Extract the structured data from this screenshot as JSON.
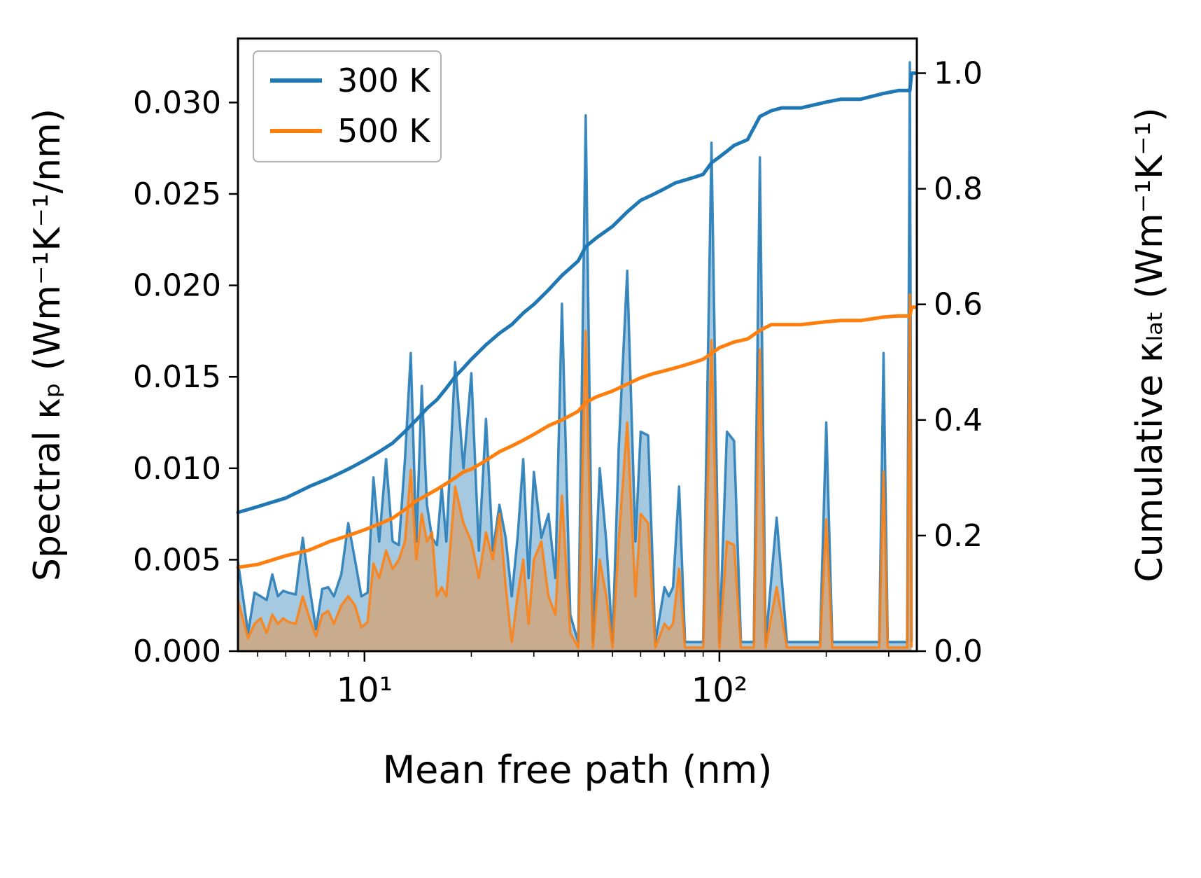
{
  "chart_data": {
    "type": "line",
    "title": "",
    "xlabel": "Mean free path (nm)",
    "x_axis": {
      "scale": "log",
      "min": 4.4,
      "max": 360,
      "major_tick_values": [
        10,
        100
      ],
      "major_tick_labels": [
        "10¹",
        "10²"
      ],
      "minor_tick_values": [
        5,
        6,
        7,
        8,
        9,
        20,
        30,
        40,
        50,
        60,
        70,
        80,
        90,
        200,
        300
      ]
    },
    "left_axis": {
      "label": "Spectral κₚ (Wm⁻¹K⁻¹/nm)",
      "min": 0,
      "max": 0.0335,
      "tick_values": [
        0.0,
        0.005,
        0.01,
        0.015,
        0.02,
        0.025,
        0.03
      ],
      "tick_labels": [
        "0.000",
        "0.005",
        "0.010",
        "0.015",
        "0.020",
        "0.025",
        "0.030"
      ]
    },
    "right_axis": {
      "label": "Cumulative κₗₐₜ (Wm⁻¹K⁻¹)",
      "min": 0,
      "max": 1.06,
      "tick_values": [
        0.0,
        0.2,
        0.4,
        0.6,
        0.8,
        1.0
      ],
      "tick_labels": [
        "0.0",
        "0.2",
        "0.4",
        "0.6",
        "0.8",
        "1.0"
      ]
    },
    "legend": {
      "position": "upper-left",
      "items": [
        {
          "label": "300 K",
          "color": "#1f77b4"
        },
        {
          "label": "500 K",
          "color": "#ff7f0e"
        }
      ]
    },
    "series": [
      {
        "name": "300 K spectral",
        "legend_label": "300 K",
        "color": "#1f77b4",
        "axis": "left",
        "style": "area",
        "x": [
          4.4,
          4.7,
          4.9,
          5.1,
          5.3,
          5.5,
          5.7,
          5.9,
          6.1,
          6.4,
          6.7,
          7.0,
          7.3,
          7.6,
          7.9,
          8.2,
          8.6,
          9.0,
          9.4,
          9.8,
          10.2,
          10.6,
          11.0,
          11.5,
          12.0,
          12.5,
          13.0,
          13.5,
          14.0,
          14.5,
          15.0,
          15.5,
          16.0,
          16.5,
          17.0,
          18.0,
          19.0,
          20.0,
          21.0,
          22.0,
          23.0,
          24.0,
          25.0,
          26.0,
          27.0,
          28.0,
          29.0,
          30.0,
          31.5,
          33.0,
          34.5,
          36.0,
          38.0,
          40.0,
          42.0,
          44.0,
          46.0,
          48.0,
          50.0,
          52.0,
          55.0,
          58.0,
          60.0,
          63.0,
          66.0,
          70.0,
          72.0,
          74.0,
          77.0,
          80.0,
          85.0,
          90.0,
          95.0,
          100.0,
          105.0,
          110.0,
          115.0,
          125.0,
          130.0,
          135.0,
          145.0,
          155.0,
          192.0,
          200.0,
          208.0,
          282.0,
          290.0,
          298.0,
          338.0,
          344.0,
          348.0
        ],
        "y": [
          0.0049,
          0.001,
          0.0032,
          0.003,
          0.0028,
          0.0042,
          0.003,
          0.0033,
          0.0032,
          0.0031,
          0.0062,
          0.0035,
          0.0012,
          0.0034,
          0.0035,
          0.003,
          0.0042,
          0.007,
          0.005,
          0.003,
          0.0032,
          0.0095,
          0.006,
          0.0105,
          0.006,
          0.0058,
          0.0105,
          0.0163,
          0.006,
          0.0145,
          0.008,
          0.0062,
          0.0058,
          0.009,
          0.006,
          0.0158,
          0.01,
          0.0152,
          0.0055,
          0.0127,
          0.0055,
          0.008,
          0.0062,
          0.003,
          0.0062,
          0.0105,
          0.004,
          0.0098,
          0.0062,
          0.0075,
          0.004,
          0.019,
          0.002,
          0.0005,
          0.0293,
          0.0005,
          0.01,
          0.006,
          0.0005,
          0.011,
          0.0208,
          0.006,
          0.012,
          0.0118,
          0.0005,
          0.0035,
          0.003,
          0.0035,
          0.009,
          0.0005,
          0.0005,
          0.0005,
          0.0278,
          0.0005,
          0.012,
          0.0115,
          0.0005,
          0.0005,
          0.027,
          0.0005,
          0.0073,
          0.0005,
          0.0005,
          0.0125,
          0.0005,
          0.0005,
          0.0163,
          0.0005,
          0.0005,
          0.0322,
          0.0005
        ]
      },
      {
        "name": "500 K spectral",
        "legend_label": "500 K",
        "color": "#ff7f0e",
        "axis": "left",
        "style": "area",
        "x": [
          4.4,
          4.7,
          4.9,
          5.1,
          5.3,
          5.5,
          5.7,
          5.9,
          6.1,
          6.4,
          6.7,
          7.0,
          7.3,
          7.6,
          7.9,
          8.2,
          8.6,
          9.0,
          9.4,
          9.8,
          10.2,
          10.6,
          11.0,
          11.5,
          12.0,
          12.5,
          13.0,
          13.5,
          14.0,
          14.5,
          15.0,
          15.5,
          16.0,
          16.5,
          17.0,
          18.0,
          19.0,
          20.0,
          21.0,
          22.0,
          23.0,
          24.0,
          25.0,
          26.0,
          27.0,
          28.0,
          29.0,
          30.0,
          31.5,
          33.0,
          34.5,
          36.0,
          38.0,
          40.0,
          42.0,
          44.0,
          46.0,
          48.0,
          50.0,
          52.0,
          55.0,
          58.0,
          60.0,
          63.0,
          66.0,
          70.0,
          72.0,
          74.0,
          77.0,
          80.0,
          85.0,
          90.0,
          95.0,
          100.0,
          105.0,
          110.0,
          115.0,
          125.0,
          130.0,
          135.0,
          145.0,
          155.0,
          192.0,
          200.0,
          208.0,
          282.0,
          290.0,
          298.0,
          338.0,
          344.0,
          348.0
        ],
        "y": [
          0.0028,
          0.0007,
          0.0015,
          0.0018,
          0.001,
          0.002,
          0.0015,
          0.0018,
          0.0016,
          0.0015,
          0.003,
          0.0018,
          0.0008,
          0.002,
          0.0022,
          0.0015,
          0.0025,
          0.003,
          0.0025,
          0.0013,
          0.0016,
          0.0048,
          0.004,
          0.0055,
          0.0045,
          0.005,
          0.006,
          0.0099,
          0.005,
          0.0075,
          0.006,
          0.0065,
          0.003,
          0.0035,
          0.003,
          0.009,
          0.007,
          0.006,
          0.004,
          0.0065,
          0.005,
          0.0075,
          0.0035,
          0.0005,
          0.003,
          0.005,
          0.0015,
          0.005,
          0.006,
          0.003,
          0.002,
          0.0085,
          0.001,
          0.0002,
          0.0175,
          0.0002,
          0.005,
          0.003,
          0.0002,
          0.006,
          0.0125,
          0.003,
          0.0075,
          0.007,
          0.0002,
          0.0015,
          0.0012,
          0.0015,
          0.0045,
          0.0002,
          0.0002,
          0.0002,
          0.017,
          0.0002,
          0.006,
          0.0058,
          0.0002,
          0.0002,
          0.0165,
          0.0002,
          0.0035,
          0.0002,
          0.0002,
          0.0072,
          0.0002,
          0.0002,
          0.0098,
          0.0002,
          0.0002,
          0.0195,
          0.0002
        ]
      },
      {
        "name": "300 K cumulative",
        "legend_label": "300 K",
        "color": "#1f77b4",
        "axis": "right",
        "style": "line",
        "x": [
          4.4,
          5,
          6,
          7,
          8,
          9,
          10,
          11,
          12,
          13,
          14,
          15,
          16,
          17,
          18,
          19,
          20,
          22,
          24,
          26,
          28,
          30,
          33,
          36,
          40,
          42,
          45,
          50,
          55,
          60,
          65,
          70,
          75,
          80,
          85,
          90,
          95,
          100,
          105,
          110,
          120,
          130,
          140,
          150,
          170,
          200,
          220,
          250,
          290,
          320,
          344,
          348,
          356
        ],
        "y": [
          0.24,
          0.25,
          0.265,
          0.285,
          0.3,
          0.315,
          0.33,
          0.345,
          0.36,
          0.38,
          0.4,
          0.42,
          0.435,
          0.455,
          0.475,
          0.49,
          0.505,
          0.53,
          0.55,
          0.565,
          0.585,
          0.6,
          0.625,
          0.65,
          0.675,
          0.7,
          0.715,
          0.735,
          0.76,
          0.78,
          0.79,
          0.8,
          0.81,
          0.815,
          0.82,
          0.825,
          0.845,
          0.855,
          0.865,
          0.875,
          0.885,
          0.925,
          0.935,
          0.94,
          0.94,
          0.95,
          0.955,
          0.955,
          0.965,
          0.97,
          0.97,
          1.0,
          1.0
        ]
      },
      {
        "name": "500 K cumulative",
        "legend_label": "500 K",
        "color": "#ff7f0e",
        "axis": "right",
        "style": "line",
        "x": [
          4.4,
          5,
          6,
          7,
          8,
          9,
          10,
          11,
          12,
          13,
          14,
          15,
          16,
          17,
          18,
          19,
          20,
          22,
          24,
          26,
          28,
          30,
          33,
          36,
          40,
          42,
          45,
          50,
          55,
          60,
          65,
          70,
          75,
          80,
          85,
          90,
          95,
          100,
          105,
          110,
          120,
          130,
          140,
          150,
          170,
          200,
          220,
          250,
          290,
          320,
          344,
          348,
          356
        ],
        "y": [
          0.145,
          0.15,
          0.165,
          0.175,
          0.19,
          0.2,
          0.21,
          0.22,
          0.23,
          0.245,
          0.26,
          0.27,
          0.28,
          0.29,
          0.3,
          0.31,
          0.315,
          0.33,
          0.345,
          0.355,
          0.365,
          0.375,
          0.39,
          0.4,
          0.415,
          0.43,
          0.44,
          0.45,
          0.462,
          0.473,
          0.48,
          0.485,
          0.49,
          0.495,
          0.5,
          0.505,
          0.515,
          0.525,
          0.53,
          0.535,
          0.54,
          0.555,
          0.565,
          0.565,
          0.565,
          0.57,
          0.572,
          0.572,
          0.578,
          0.58,
          0.58,
          0.595,
          0.595
        ]
      }
    ],
    "style": {
      "fill_opacity": 0.4,
      "spectral_line_width": 3.5,
      "cumulative_line_width": 5,
      "spine_width": 3,
      "spine_color": "#000000",
      "background": "#ffffff"
    }
  }
}
